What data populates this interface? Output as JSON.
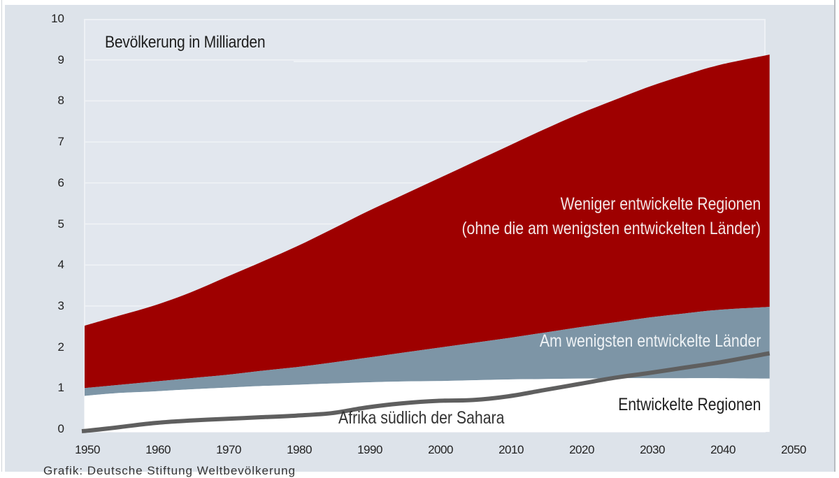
{
  "chart_data": {
    "type": "area",
    "stacked": true,
    "title": "Bevölkerung in Milliarden",
    "xlabel": "",
    "ylabel": "Bevölkerung in Milliarden",
    "xlim": [
      1950,
      2050
    ],
    "ylim": [
      0,
      10
    ],
    "grid": true,
    "x_ticks": [
      "1950",
      "1960",
      "1970",
      "1980",
      "1990",
      "2000",
      "2010",
      "2020",
      "2030",
      "2040",
      "2050"
    ],
    "y_ticks": [
      "0",
      "1",
      "2",
      "3",
      "4",
      "5",
      "6",
      "7",
      "8",
      "9",
      "10"
    ],
    "x": [
      1950,
      1955,
      1960,
      1965,
      1970,
      1975,
      1980,
      1985,
      1990,
      1995,
      2000,
      2005,
      2010,
      2015,
      2020,
      2025,
      2030,
      2035,
      2040,
      2047
    ],
    "series": [
      {
        "name": "Entwickelte Regionen",
        "color": "#ffffff",
        "values": [
          0.81,
          0.88,
          0.92,
          0.97,
          1.01,
          1.05,
          1.08,
          1.11,
          1.14,
          1.16,
          1.17,
          1.19,
          1.21,
          1.22,
          1.23,
          1.24,
          1.24,
          1.24,
          1.24,
          1.23
        ]
      },
      {
        "name": "Am wenigsten entwickelte Länder",
        "color": "#7d95a6",
        "values": [
          0.19,
          0.2,
          0.24,
          0.27,
          0.31,
          0.37,
          0.43,
          0.51,
          0.6,
          0.7,
          0.81,
          0.91,
          1.01,
          1.13,
          1.25,
          1.36,
          1.48,
          1.58,
          1.67,
          1.75
        ]
      },
      {
        "name": "Weniger entwickelte Regionen (ohne die am wenigsten entwickelten Länder)",
        "color": "#9e0000",
        "values": [
          1.52,
          1.69,
          1.86,
          2.09,
          2.38,
          2.65,
          2.94,
          3.25,
          3.56,
          3.84,
          4.12,
          4.4,
          4.68,
          4.95,
          5.2,
          5.42,
          5.63,
          5.81,
          5.97,
          6.15
        ]
      }
    ],
    "overlay_lines": [
      {
        "name": "Afrika südlich der Sahara",
        "color": "#5f5f5f",
        "values": [
          0.0,
          0.1,
          0.2,
          0.26,
          0.3,
          0.34,
          0.38,
          0.44,
          0.58,
          0.68,
          0.74,
          0.76,
          0.85,
          1.0,
          1.15,
          1.3,
          1.42,
          1.55,
          1.68,
          1.9
        ]
      }
    ],
    "annotations": [
      "Weniger entwickelte Regionen",
      "(ohne die am wenigsten entwickelten Länder)",
      "Am wenigsten entwickelte Länder",
      "Entwickelte Regionen",
      "Afrika südlich der Sahara"
    ],
    "legend_position": "inline labels"
  },
  "labels": {
    "title": "Bevölkerung in Milliarden",
    "red_line1": "Weniger entwickelte Regionen",
    "red_line2": "(ohne die am wenigsten entwickelten Länder)",
    "blue": "Am wenigsten entwickelte Länder",
    "developed": "Entwickelte Regionen",
    "africa": "Afrika südlich der Sahara",
    "caption": "Grafik: Deutsche Stiftung Weltbevölkerung"
  }
}
